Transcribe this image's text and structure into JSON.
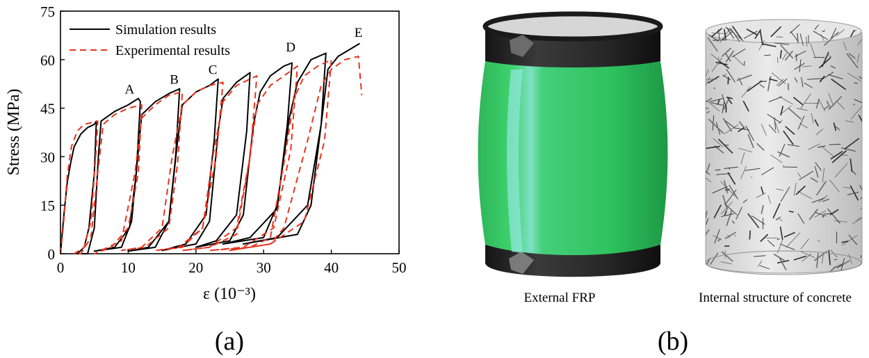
{
  "panels": {
    "a": {
      "label": "(a)"
    },
    "b": {
      "label": "(b)",
      "captions": [
        "External FRP",
        "Internal structure of concrete"
      ]
    }
  },
  "colors": {
    "simulation": "#000000",
    "experimental": "#e8331e",
    "frp_green": "#2bbf5c",
    "steel_cap": "#2a2a2a"
  },
  "chart_data": {
    "type": "line",
    "xlabel": "ε (10⁻³)",
    "ylabel": "Stress (MPa)",
    "xlim": [
      0,
      50
    ],
    "ylim": [
      0,
      75
    ],
    "xticks": [
      0,
      10,
      20,
      30,
      40,
      50
    ],
    "yticks": [
      0,
      15,
      30,
      45,
      60,
      75
    ],
    "grid": false,
    "legend_position": "top-left",
    "annotations": [
      {
        "text": "A",
        "x": 10.2,
        "y": 49.5
      },
      {
        "text": "B",
        "x": 16.8,
        "y": 52.5
      },
      {
        "text": "C",
        "x": 22.5,
        "y": 55.5
      },
      {
        "text": "D",
        "x": 34.0,
        "y": 62.5
      },
      {
        "text": "E",
        "x": 44.0,
        "y": 67.0
      }
    ],
    "series": [
      {
        "name": "Simulation results",
        "style": "solid",
        "points": [
          [
            0,
            0
          ],
          [
            0.5,
            12
          ],
          [
            1,
            22
          ],
          [
            1.5,
            28
          ],
          [
            2,
            33
          ],
          [
            3,
            37
          ],
          [
            4,
            39
          ],
          [
            5,
            40
          ],
          [
            5.3,
            41
          ],
          [
            5,
            25
          ],
          [
            4.2,
            8
          ],
          [
            3.5,
            2
          ],
          [
            2.5,
            0
          ],
          [
            4,
            0
          ],
          [
            5,
            8
          ],
          [
            5.6,
            30
          ],
          [
            6,
            41
          ],
          [
            8,
            44
          ],
          [
            10,
            46
          ],
          [
            11.5,
            48
          ],
          [
            11.8,
            47
          ],
          [
            11.2,
            25
          ],
          [
            10.2,
            8
          ],
          [
            8,
            2
          ],
          [
            5,
            0.8
          ],
          [
            9,
            2
          ],
          [
            10.5,
            10
          ],
          [
            11.5,
            32
          ],
          [
            12,
            43
          ],
          [
            14,
            47
          ],
          [
            16,
            49.5
          ],
          [
            17.6,
            51
          ],
          [
            17,
            30
          ],
          [
            16,
            10
          ],
          [
            13,
            2
          ],
          [
            10,
            0.8
          ],
          [
            14,
            2
          ],
          [
            16,
            10
          ],
          [
            17.3,
            35
          ],
          [
            18,
            46
          ],
          [
            20,
            50
          ],
          [
            22,
            52
          ],
          [
            23.3,
            54
          ],
          [
            22.7,
            35
          ],
          [
            21.5,
            12
          ],
          [
            18.5,
            3
          ],
          [
            15,
            1
          ],
          [
            20,
            3
          ],
          [
            22,
            10
          ],
          [
            23.3,
            38
          ],
          [
            24,
            48
          ],
          [
            26,
            53
          ],
          [
            28,
            56
          ],
          [
            27.5,
            38
          ],
          [
            26,
            12
          ],
          [
            23,
            4
          ],
          [
            20,
            2
          ],
          [
            25,
            4
          ],
          [
            27,
            12
          ],
          [
            28.5,
            40
          ],
          [
            29.5,
            50
          ],
          [
            31,
            55
          ],
          [
            33,
            58
          ],
          [
            34.2,
            59
          ],
          [
            33.5,
            40
          ],
          [
            32,
            14
          ],
          [
            28,
            5
          ],
          [
            24,
            3
          ],
          [
            30,
            5
          ],
          [
            32,
            15
          ],
          [
            33.8,
            42
          ],
          [
            35,
            53
          ],
          [
            37,
            60
          ],
          [
            39.2,
            62
          ],
          [
            38.5,
            40
          ],
          [
            36.5,
            15
          ],
          [
            32,
            5
          ],
          [
            27,
            3
          ],
          [
            35,
            6
          ],
          [
            37,
            15
          ],
          [
            38.8,
            45
          ],
          [
            39.5,
            57
          ],
          [
            41,
            61
          ],
          [
            43,
            63.5
          ],
          [
            44.2,
            65
          ]
        ]
      },
      {
        "name": "Experimental results",
        "style": "dashed",
        "points": [
          [
            0,
            0
          ],
          [
            0.4,
            8
          ],
          [
            1,
            24
          ],
          [
            1.6,
            33
          ],
          [
            2.5,
            38
          ],
          [
            3.5,
            40
          ],
          [
            5.5,
            41
          ],
          [
            5.2,
            30
          ],
          [
            4.5,
            10
          ],
          [
            3.5,
            2
          ],
          [
            2,
            0
          ],
          [
            3,
            0
          ],
          [
            4.5,
            5
          ],
          [
            5.5,
            25
          ],
          [
            6.3,
            40
          ],
          [
            8,
            43
          ],
          [
            10,
            45
          ],
          [
            12,
            46
          ],
          [
            11.5,
            25
          ],
          [
            10,
            8
          ],
          [
            7.5,
            2
          ],
          [
            5,
            0
          ],
          [
            6,
            1
          ],
          [
            9,
            4
          ],
          [
            11,
            25
          ],
          [
            12,
            42
          ],
          [
            14,
            46
          ],
          [
            16,
            49
          ],
          [
            18,
            50
          ],
          [
            17.3,
            28
          ],
          [
            16,
            8
          ],
          [
            12.5,
            2
          ],
          [
            9,
            1
          ],
          [
            12,
            2
          ],
          [
            15,
            8
          ],
          [
            16.5,
            30
          ],
          [
            18,
            46
          ],
          [
            20,
            50
          ],
          [
            22,
            52
          ],
          [
            24,
            53
          ],
          [
            23,
            30
          ],
          [
            21,
            8
          ],
          [
            17.5,
            2
          ],
          [
            14,
            1
          ],
          [
            18,
            2
          ],
          [
            21,
            8
          ],
          [
            22.5,
            30
          ],
          [
            24,
            47
          ],
          [
            26,
            52
          ],
          [
            28,
            54
          ],
          [
            29,
            55
          ],
          [
            28,
            30
          ],
          [
            26,
            8
          ],
          [
            22,
            2
          ],
          [
            18,
            1
          ],
          [
            22,
            2
          ],
          [
            26,
            6
          ],
          [
            28,
            30
          ],
          [
            29,
            46
          ],
          [
            31,
            52
          ],
          [
            33,
            55
          ],
          [
            35,
            58
          ],
          [
            34,
            32
          ],
          [
            31.5,
            8
          ],
          [
            27,
            2
          ],
          [
            22,
            1
          ],
          [
            28,
            2
          ],
          [
            31,
            5
          ],
          [
            33,
            28
          ],
          [
            34.5,
            48
          ],
          [
            36,
            55
          ],
          [
            38,
            58
          ],
          [
            40,
            60
          ],
          [
            39,
            35
          ],
          [
            36,
            10
          ],
          [
            31,
            3
          ],
          [
            25,
            1
          ],
          [
            31,
            3
          ],
          [
            33,
            8
          ],
          [
            36.5,
            35
          ],
          [
            38.5,
            52
          ],
          [
            40,
            57
          ],
          [
            42,
            60
          ],
          [
            44,
            61
          ],
          [
            44.5,
            49
          ]
        ]
      }
    ]
  }
}
